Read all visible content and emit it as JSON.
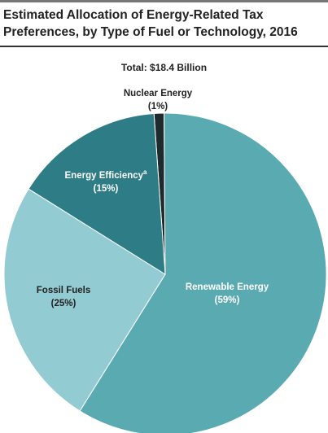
{
  "chart_data": {
    "type": "pie",
    "title": "Estimated Allocation of Energy-Related Tax Preferences, by Type of Fuel or Technology, 2016",
    "subtitle": "Total: $18.4 Billion",
    "slices": [
      {
        "label": "Nuclear Energy",
        "value_label": "(1%)",
        "value": 1,
        "color": "#1f2a2e",
        "label_color": "#222222"
      },
      {
        "label": "Renewable Energy",
        "value_label": "(59%)",
        "value": 59,
        "color": "#5aaab2",
        "label_color": "#ffffff"
      },
      {
        "label": "Fossil Fuels",
        "value_label": "(25%)",
        "value": 25,
        "color": "#93cbd2",
        "label_color": "#222222"
      },
      {
        "label": "Energy Efficiency",
        "label_superscript": "a",
        "value_label": "(15%)",
        "value": 15,
        "color": "#2e7d86",
        "label_color": "#ffffff"
      }
    ]
  }
}
